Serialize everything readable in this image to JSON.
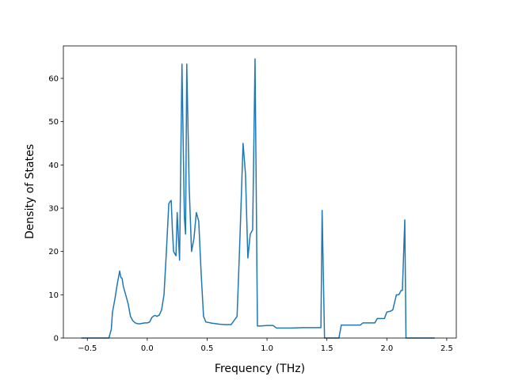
{
  "chart_data": {
    "type": "line",
    "xlabel": "Frequency (THz)",
    "ylabel": "Density of States",
    "xlim": [
      -0.7,
      2.58
    ],
    "ylim": [
      0,
      67.5
    ],
    "xticks": [
      -0.5,
      0.0,
      0.5,
      1.0,
      1.5,
      2.0,
      2.5
    ],
    "xtick_labels": [
      "−0.5",
      "0.0",
      "0.5",
      "1.0",
      "1.5",
      "2.0",
      "2.5"
    ],
    "yticks": [
      0,
      10,
      20,
      30,
      40,
      50,
      60
    ],
    "ytick_labels": [
      "0",
      "10",
      "20",
      "30",
      "40",
      "50",
      "60"
    ],
    "grid": false,
    "legend": "none",
    "color": "#1f77b4",
    "series": [
      {
        "x": [
          -0.55,
          -0.32,
          -0.3,
          -0.29,
          -0.27,
          -0.25,
          -0.23,
          -0.22,
          -0.21,
          -0.2,
          -0.18,
          -0.16,
          -0.14,
          -0.12,
          -0.1,
          -0.08,
          -0.06,
          -0.04,
          -0.02,
          0.0,
          0.02,
          0.04,
          0.06,
          0.07,
          0.08,
          0.1,
          0.12,
          0.14,
          0.16,
          0.18,
          0.19,
          0.2,
          0.21,
          0.22,
          0.24,
          0.25,
          0.27,
          0.29,
          0.31,
          0.32,
          0.33,
          0.35,
          0.37,
          0.39,
          0.41,
          0.43,
          0.45,
          0.47,
          0.49,
          0.51,
          0.53,
          0.54,
          0.55,
          0.6,
          0.65,
          0.7,
          0.75,
          0.77,
          0.78,
          0.8,
          0.82,
          0.84,
          0.86,
          0.88,
          0.9,
          0.92,
          0.95,
          1.0,
          1.05,
          1.08,
          1.1,
          1.2,
          1.3,
          1.4,
          1.45,
          1.46,
          1.48,
          1.5,
          1.6,
          1.62,
          1.64,
          1.7,
          1.78,
          1.8,
          1.85,
          1.9,
          1.92,
          1.95,
          1.98,
          2.0,
          2.03,
          2.05,
          2.08,
          2.1,
          2.12,
          2.13,
          2.15,
          2.16,
          2.17,
          2.2,
          2.3,
          2.4
        ],
        "y": [
          0.0,
          0.0,
          2.0,
          6.0,
          9.0,
          12.5,
          15.5,
          14.0,
          13.8,
          12.0,
          10.0,
          8.0,
          5.0,
          4.0,
          3.5,
          3.3,
          3.3,
          3.4,
          3.5,
          3.5,
          3.7,
          4.8,
          5.2,
          5.2,
          5.0,
          5.3,
          6.5,
          10.0,
          20.0,
          31.0,
          31.5,
          31.8,
          25.0,
          20.0,
          19.0,
          29.0,
          18.0,
          63.3,
          28.0,
          24.0,
          63.3,
          35.0,
          20.0,
          23.0,
          29.0,
          27.0,
          15.0,
          5.0,
          3.7,
          3.6,
          3.5,
          3.4,
          3.4,
          3.2,
          3.1,
          3.1,
          5.0,
          20.0,
          28.0,
          45.0,
          38.0,
          18.5,
          24.0,
          25.0,
          64.5,
          2.8,
          2.8,
          2.9,
          2.9,
          2.3,
          2.3,
          2.3,
          2.4,
          2.4,
          2.4,
          29.5,
          0.0,
          0.0,
          0.0,
          3.0,
          3.0,
          3.0,
          3.0,
          3.5,
          3.5,
          3.5,
          4.5,
          4.5,
          4.5,
          6.0,
          6.2,
          6.5,
          10.0,
          10.0,
          11.0,
          11.0,
          27.3,
          0.0,
          0.0,
          0.0,
          0.0,
          0.0
        ]
      }
    ]
  }
}
